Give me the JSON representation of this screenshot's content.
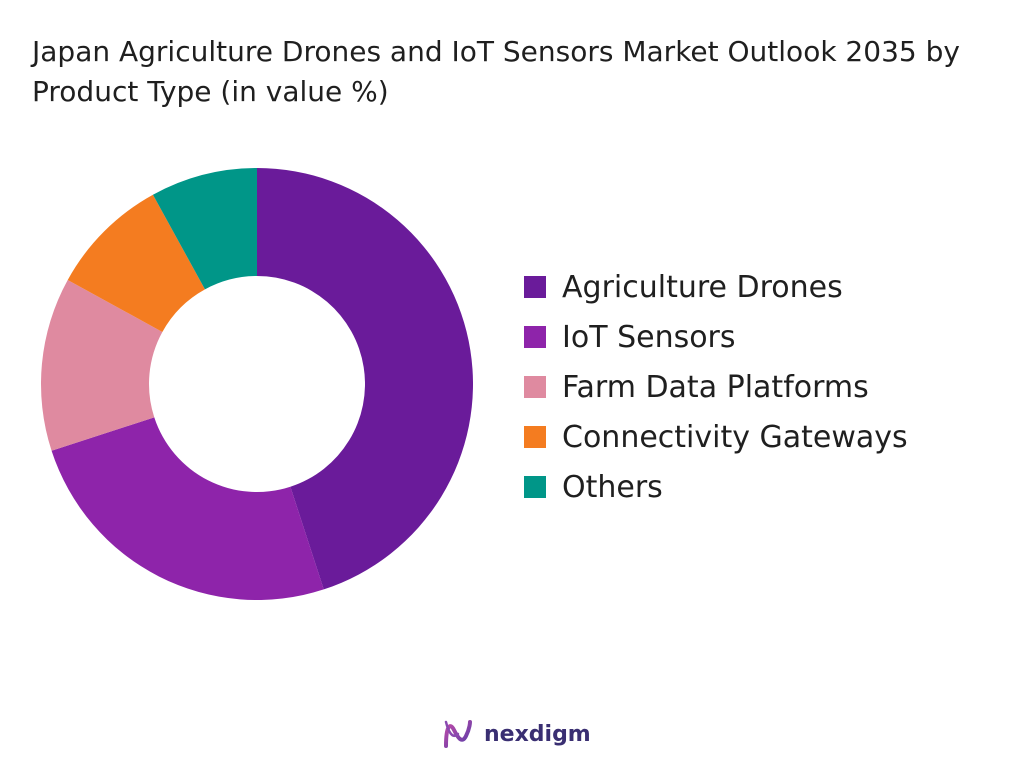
{
  "title": "Japan Agriculture Drones and IoT Sensors Market Outlook 2035 by Product Type (in value %)",
  "brand": {
    "name": "nexdigm"
  },
  "chart_data": {
    "type": "pie",
    "variant": "donut",
    "categories": [
      "Agriculture Drones",
      "IoT Sensors",
      "Farm Data Platforms",
      "Connectivity Gateways",
      "Others"
    ],
    "values": [
      45,
      25,
      13,
      9,
      8
    ],
    "colors": [
      "#6a1b9a",
      "#8e24aa",
      "#df8aa0",
      "#f47c20",
      "#009688"
    ],
    "legend_position": "right"
  }
}
